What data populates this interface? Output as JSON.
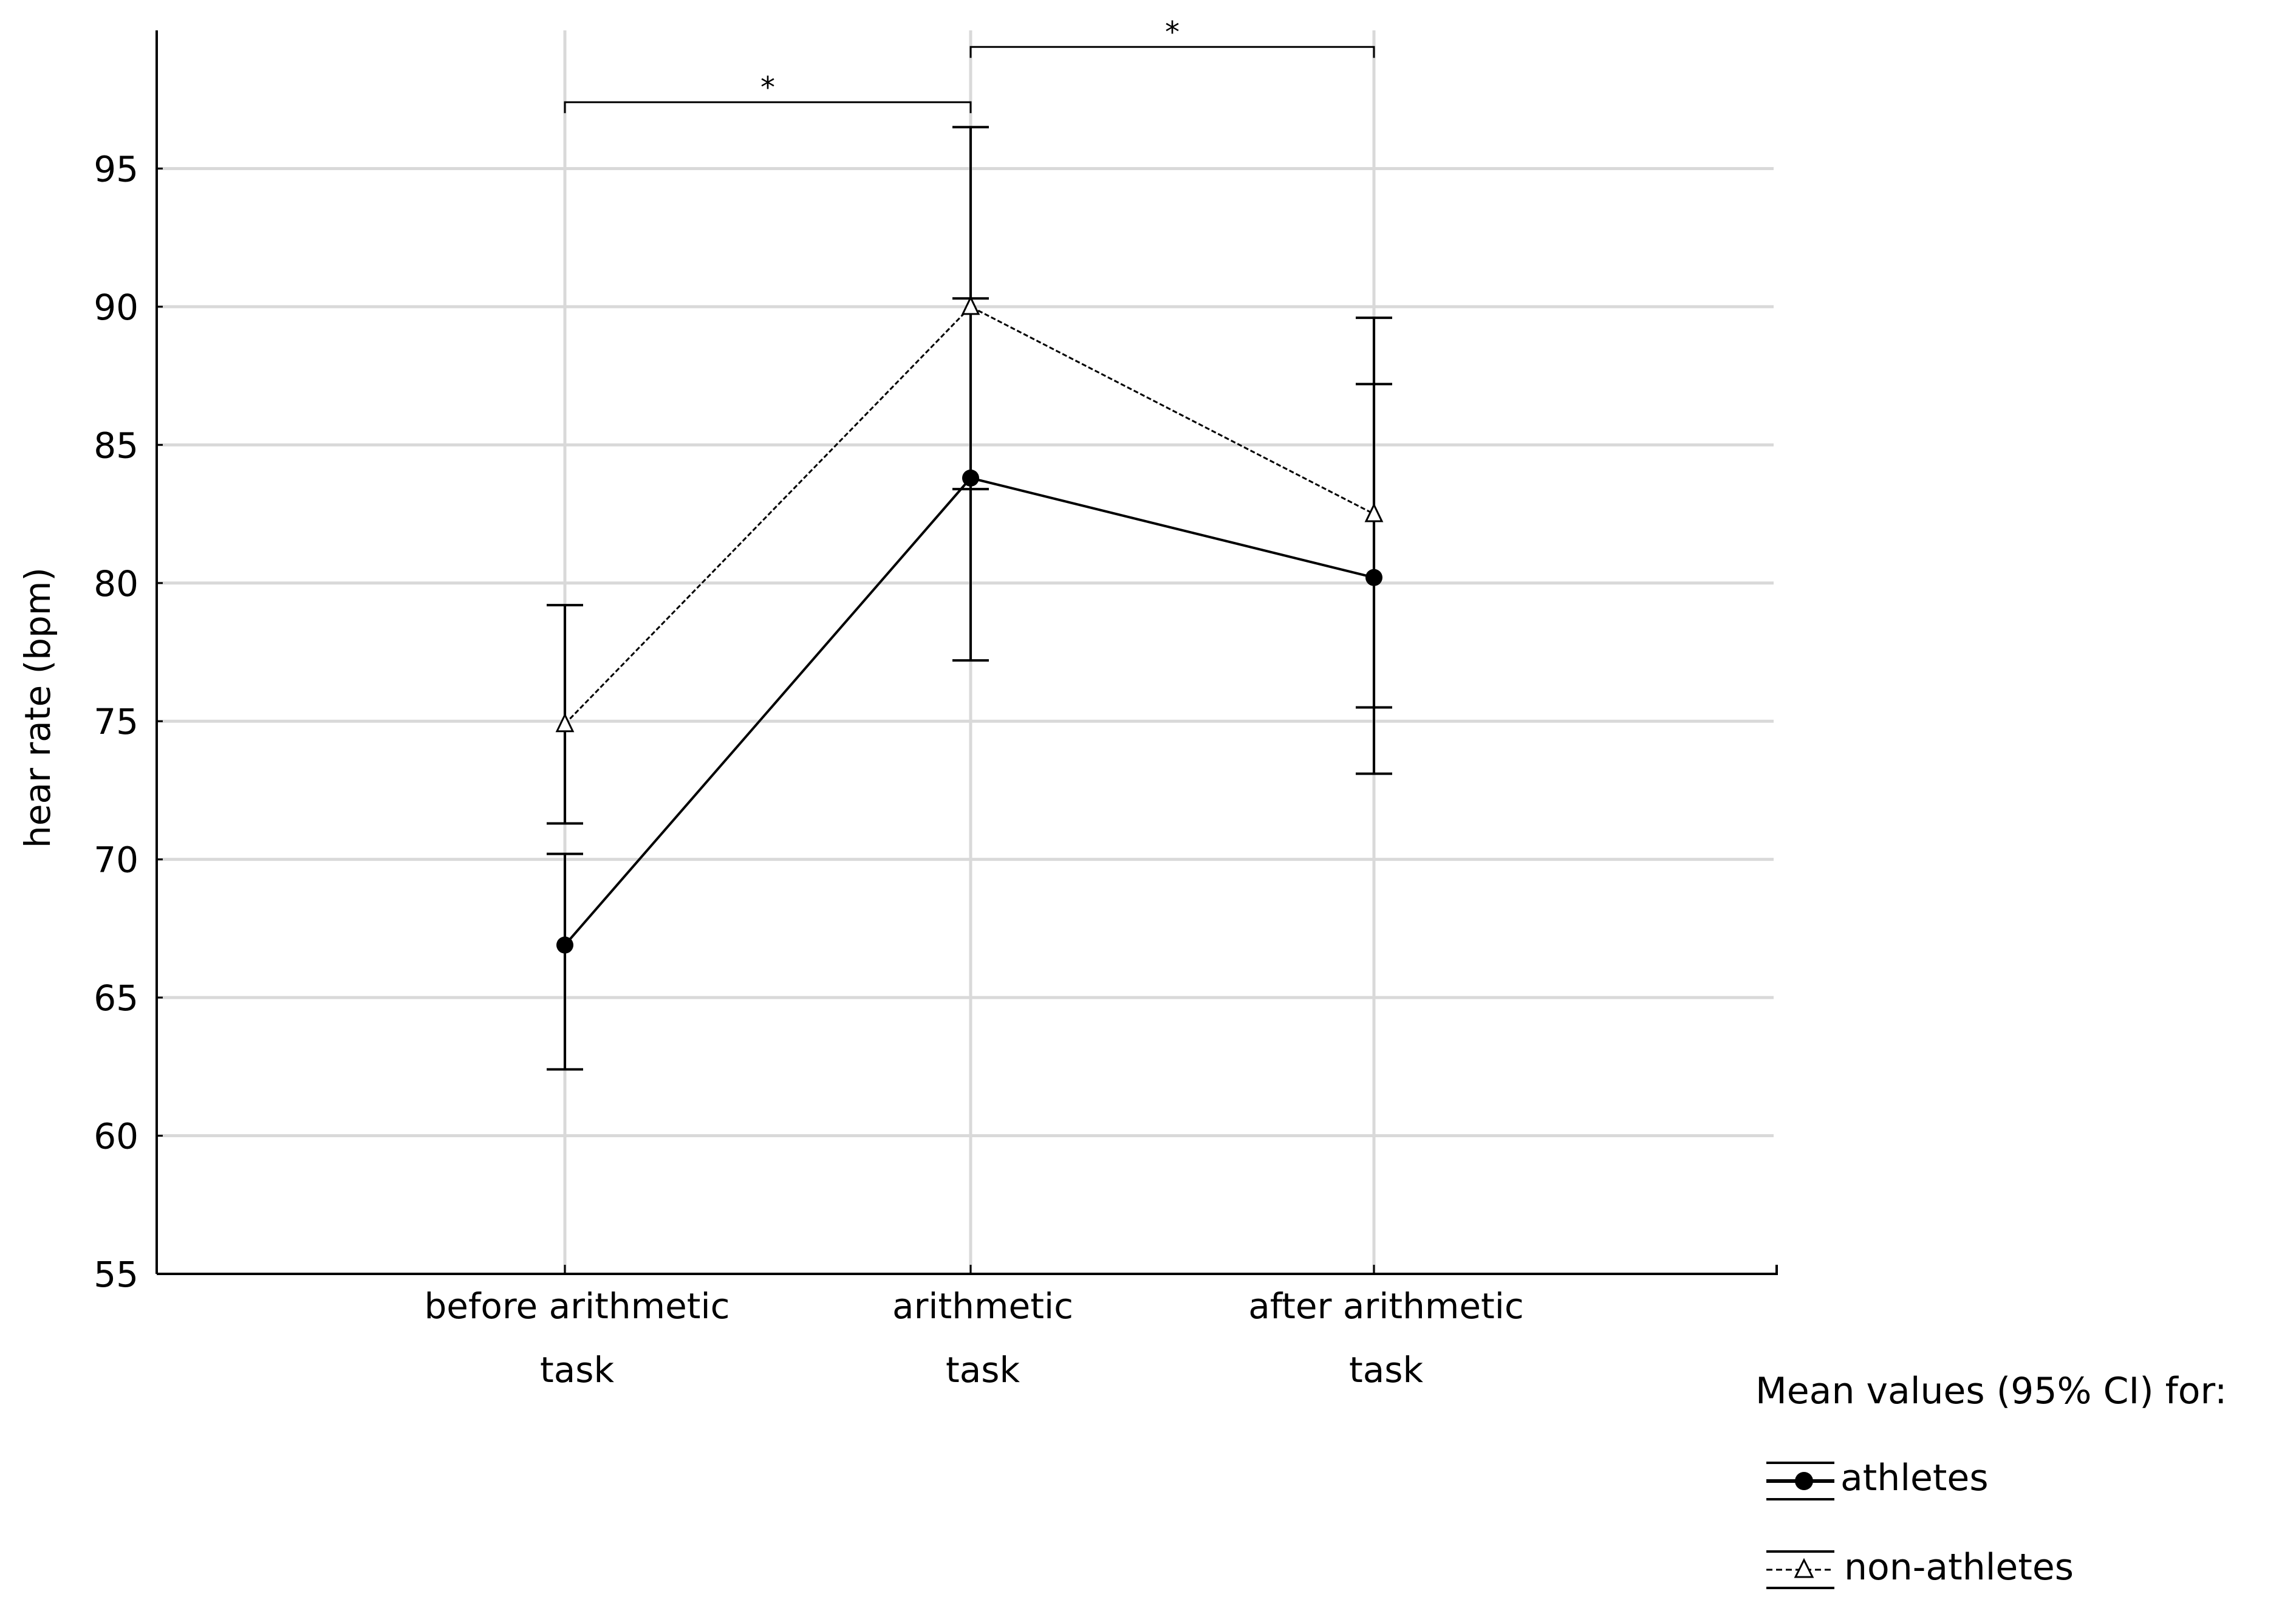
{
  "chart_data": {
    "type": "line",
    "categories": [
      [
        "before arithmetic",
        "task"
      ],
      [
        "arithmetic",
        "task"
      ],
      [
        "after arithmetic",
        "task"
      ]
    ],
    "ylabel": "hear rate (bpm)",
    "ylim": [
      55,
      100
    ],
    "yticks": [
      55,
      60,
      65,
      70,
      75,
      80,
      85,
      90,
      95
    ],
    "grid": true,
    "series": [
      {
        "name": "athletes",
        "marker": "filled-circle",
        "line_style": "solid",
        "values": [
          66.9,
          83.8,
          80.2
        ],
        "ci_lower": [
          62.4,
          77.2,
          73.1
        ],
        "ci_upper": [
          70.2,
          90.3,
          87.2
        ]
      },
      {
        "name": "non-athletes",
        "marker": "open-triangle",
        "line_style": "dashed",
        "values": [
          74.9,
          90.0,
          82.5
        ],
        "ci_lower": [
          71.3,
          83.4,
          75.5
        ],
        "ci_upper": [
          79.2,
          96.5,
          89.6
        ]
      }
    ],
    "significance": [
      {
        "from": 0,
        "to": 1,
        "label": "*"
      },
      {
        "from": 1,
        "to": 2,
        "label": "*"
      }
    ],
    "legend": {
      "title": "Mean values (95% CI) for:",
      "placement": "bottom-right"
    }
  }
}
